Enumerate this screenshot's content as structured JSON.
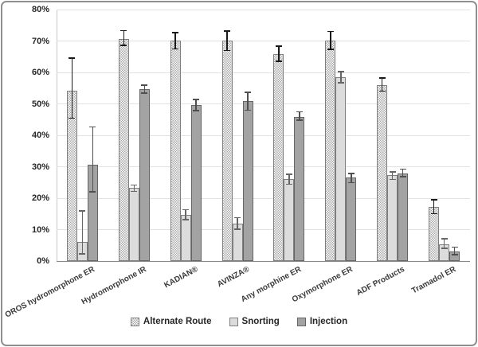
{
  "chart_data": {
    "type": "bar",
    "title": "",
    "categories": [
      "OROS hydromorphone ER",
      "Hydromorphone IR",
      "KADIAN®",
      "AVINZA®",
      "Any morphine ER",
      "Oxymorphone ER",
      "ADF Products",
      "Tramadol ER"
    ],
    "series": [
      {
        "name": "Alternate Route",
        "style": "crosshatch",
        "values": [
          54.2,
          70.6,
          70.1,
          70.1,
          65.8,
          70.1,
          56.0,
          17.2
        ],
        "errors": [
          [
            45.3,
            64.8
          ],
          [
            68.4,
            73.5
          ],
          [
            67.3,
            72.9
          ],
          [
            66.8,
            73.4
          ],
          [
            63.3,
            68.6
          ],
          [
            67.1,
            73.2
          ],
          [
            53.9,
            58.4
          ],
          [
            14.9,
            19.7
          ]
        ]
      },
      {
        "name": "Snorting",
        "style": "light",
        "values": [
          6.0,
          23.2,
          14.7,
          11.9,
          26.1,
          58.5,
          27.3,
          5.3
        ],
        "errors": [
          [
            2.1,
            16.2
          ],
          [
            22.0,
            24.4
          ],
          [
            13.0,
            16.5
          ],
          [
            9.9,
            14.0
          ],
          [
            24.3,
            27.8
          ],
          [
            56.5,
            60.5
          ],
          [
            25.8,
            28.6
          ],
          [
            3.8,
            7.3
          ]
        ]
      },
      {
        "name": "Injection",
        "style": "dark",
        "values": [
          30.6,
          54.7,
          49.6,
          51.0,
          45.9,
          26.6,
          27.8,
          3.0
        ],
        "errors": [
          [
            21.8,
            42.8
          ],
          [
            53.2,
            56.2
          ],
          [
            47.6,
            51.6
          ],
          [
            47.8,
            53.9
          ],
          [
            44.6,
            47.6
          ],
          [
            24.8,
            28.1
          ],
          [
            26.6,
            29.4
          ],
          [
            1.8,
            4.6
          ]
        ]
      }
    ],
    "y_ticks": [
      "0%",
      "10%",
      "20%",
      "30%",
      "40%",
      "50%",
      "60%",
      "70%",
      "80%"
    ],
    "ylim": [
      0,
      80
    ],
    "grid": true,
    "legend_position": "bottom",
    "colors": {
      "snorting_fill": "#dcdcdc",
      "injection_fill": "#a3a3a3",
      "bar_border": "#7f7f7f",
      "injection_border": "#646464",
      "pattern_dot": "#a9a9a9",
      "gridline": "#e2e2e2",
      "axis_line": "#8a8a8a",
      "label_text": "#262626",
      "error_bar_colors": [
        "#1a1a1a",
        "#666666",
        "#4f4f4f"
      ]
    }
  }
}
